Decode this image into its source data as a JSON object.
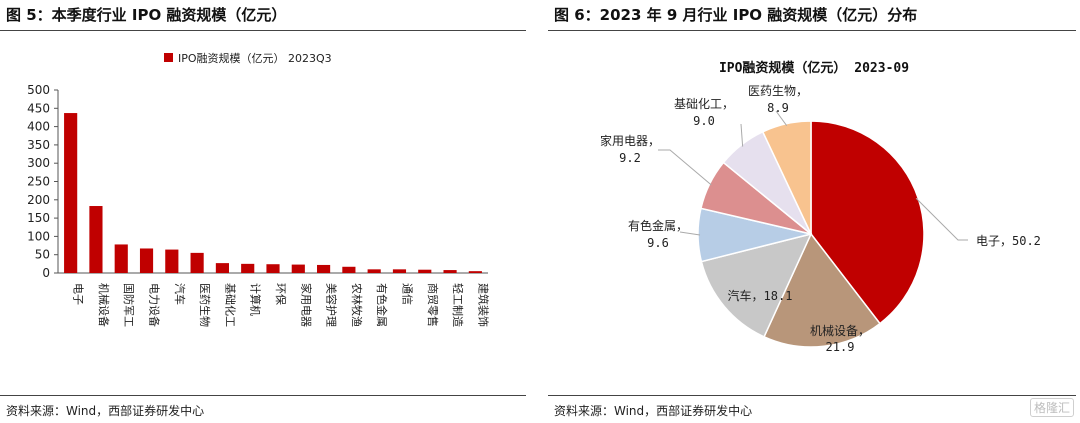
{
  "left": {
    "fig_title": "图 5：本季度行业 IPO 融资规模（亿元）",
    "source": "资料来源：Wind，西部证券研发中心",
    "chart_data": {
      "type": "bar",
      "legend": "IPO融资规模（亿元） 2023Q3",
      "legend_position": "top-center",
      "color": "#c00000",
      "categories": [
        "电子",
        "机械设备",
        "国防军工",
        "电力设备",
        "汽车",
        "医药生物",
        "基础化工",
        "计算机",
        "环保",
        "家用电器",
        "美容护理",
        "农林牧渔",
        "有色金属",
        "通信",
        "商贸零售",
        "轻工制造",
        "建筑装饰"
      ],
      "values": [
        437,
        183,
        78,
        67,
        64,
        55,
        27,
        25,
        24,
        23,
        22,
        17,
        10,
        10,
        9,
        8,
        5
      ],
      "ylim": [
        0,
        500
      ],
      "yticks": [
        0,
        50,
        100,
        150,
        200,
        250,
        300,
        350,
        400,
        450,
        500
      ],
      "grid": false
    }
  },
  "right": {
    "fig_title": "图 6：2023 年 9 月行业 IPO 融资规模（亿元）分布",
    "source": "资料来源：Wind，西部证券研发中心",
    "chart_data": {
      "type": "pie",
      "title": "IPO融资规模（亿元） 2023-09",
      "slices": [
        {
          "label": "电子",
          "value": 50.2,
          "color": "#c00000"
        },
        {
          "label": "机械设备",
          "value": 21.9,
          "color": "#b8967a"
        },
        {
          "label": "汽车",
          "value": 18.1,
          "color": "#c8c8c8"
        },
        {
          "label": "有色金属",
          "value": 9.6,
          "color": "#b7cde6"
        },
        {
          "label": "家用电器",
          "value": 9.2,
          "color": "#dc8f8f"
        },
        {
          "label": "基础化工",
          "value": 9.0,
          "color": "#e6e0ee"
        },
        {
          "label": "医药生物",
          "value": 8.9,
          "color": "#f8c38f"
        }
      ]
    }
  },
  "watermark": "格隆汇"
}
